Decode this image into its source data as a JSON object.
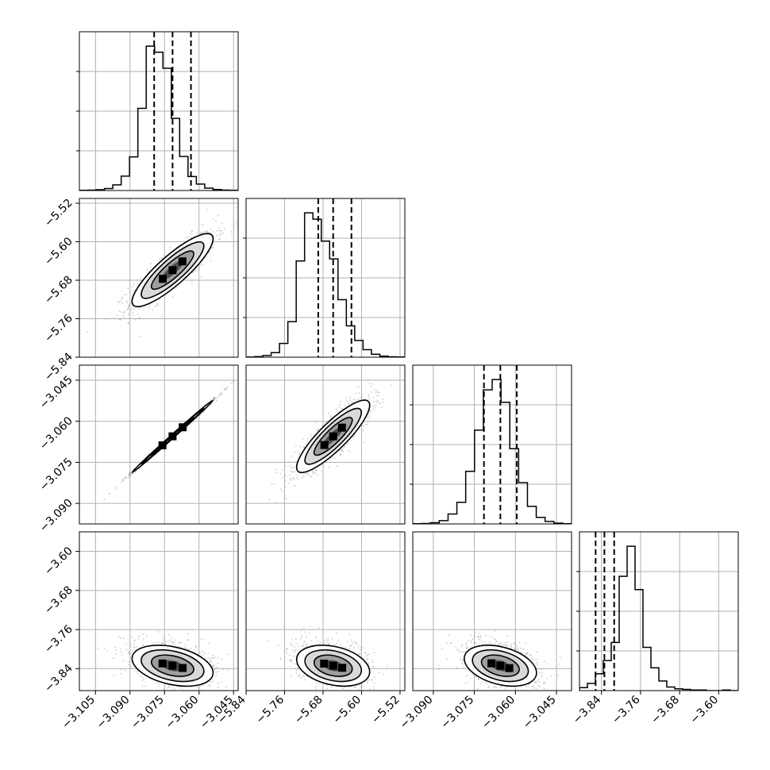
{
  "chart_data": {
    "type": "corner",
    "description_source": "posterior corner plot of 4 parameters",
    "parameters": [
      {
        "index": 0,
        "range": [
          -3.112,
          -3.043
        ],
        "ticks": [
          -3.105,
          -3.09,
          -3.075,
          -3.06,
          -3.045
        ],
        "tick_labels": [
          "−3.105",
          "−3.090",
          "−3.075",
          "−3.060",
          "−3.045"
        ],
        "quantiles": [
          -3.0795,
          -3.0715,
          -3.0635
        ]
      },
      {
        "index": 1,
        "range": [
          -5.84,
          -5.51
        ],
        "ticks": [
          -5.84,
          -5.76,
          -5.68,
          -5.6,
          -5.52
        ],
        "tick_labels": [
          "−5.84",
          "−5.76",
          "−5.68",
          "−5.60",
          "−5.52"
        ],
        "quantiles": [
          -5.69,
          -5.659,
          -5.621
        ]
      },
      {
        "index": 2,
        "range": [
          -3.0975,
          -3.0395
        ],
        "ticks": [
          -3.09,
          -3.075,
          -3.06,
          -3.045
        ],
        "tick_labels": [
          "−3.090",
          "−3.075",
          "−3.060",
          "−3.045"
        ],
        "quantiles": [
          -3.0715,
          -3.0655,
          -3.0595
        ]
      },
      {
        "index": 3,
        "range": [
          -3.885,
          -3.56
        ],
        "ticks": [
          -3.84,
          -3.76,
          -3.68,
          -3.6
        ],
        "tick_labels": [
          "−3.84",
          "−3.76",
          "−3.68",
          "−3.60"
        ],
        "quantiles": [
          -3.852,
          -3.834,
          -3.814
        ]
      }
    ],
    "histograms": [
      [
        1,
        2,
        4,
        10,
        28,
        72,
        168,
        410,
        720,
        690,
        610,
        360,
        170,
        70,
        32,
        12,
        5,
        2,
        1
      ],
      [
        1,
        3,
        8,
        22,
        66,
        170,
        460,
        690,
        660,
        555,
        470,
        275,
        150,
        80,
        36,
        14,
        5,
        2,
        1
      ],
      [
        1,
        2,
        6,
        16,
        48,
        105,
        255,
        455,
        650,
        700,
        590,
        365,
        200,
        85,
        32,
        12,
        4,
        1
      ],
      [
        5,
        12,
        28,
        50,
        80,
        190,
        240,
        168,
        72,
        38,
        16,
        6,
        3,
        2,
        1,
        1,
        0,
        0,
        1,
        0
      ]
    ],
    "correlations": {
      "1_0": 0.86,
      "2_0": 0.998,
      "2_1": 0.86,
      "3_0": -0.35,
      "3_1": -0.3,
      "3_2": -0.35
    },
    "grid": true,
    "colors": {
      "line": "#000000",
      "quantile": "#000000",
      "scatter": "#9a9a9a",
      "grid": "#b0b0b0"
    }
  }
}
